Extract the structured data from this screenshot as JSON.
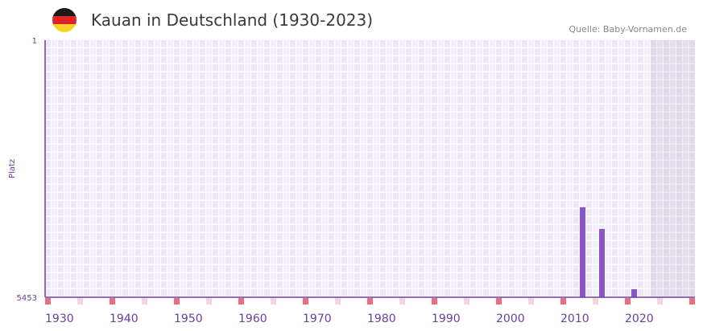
{
  "header": {
    "title": "Kauan in Deutschland (1930-2023)",
    "source": "Quelle: Baby-Vornamen.de",
    "flag_colors": [
      "#1a1a1a",
      "#dd2426",
      "#fbd12c"
    ]
  },
  "chart_data": {
    "type": "bar",
    "title": "Kauan in Deutschland (1930-2023)",
    "xlabel": "",
    "ylabel": "Platz",
    "x_range": [
      1930,
      2030
    ],
    "ylim": [
      5453,
      1
    ],
    "y_ticks": [
      "1",
      "5453"
    ],
    "x_ticks": [
      "1930",
      "1940",
      "1950",
      "1960",
      "1970",
      "1980",
      "1990",
      "2000",
      "2010",
      "2020"
    ],
    "data_until": 2023,
    "series": [
      {
        "name": "Platz",
        "x": [
          2013,
          2016,
          2021
        ],
        "values": [
          3545,
          4005,
          5283
        ],
        "color": "#8b55c8"
      }
    ],
    "colors": {
      "axis": "#6b3fa0",
      "decade_marker": "#e8707a",
      "half_decade_marker": "#f5d5dd"
    }
  }
}
